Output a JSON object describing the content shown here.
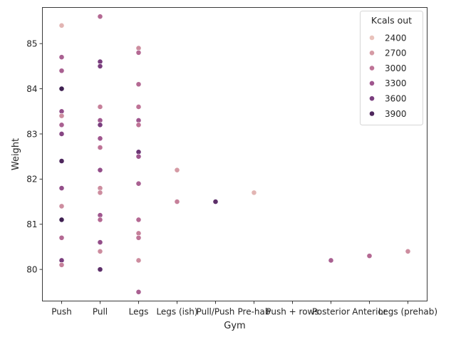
{
  "chart_data": {
    "type": "scatter",
    "xlabel": "Gym",
    "ylabel": "Weight",
    "categories": [
      "Push",
      "Pull",
      "Legs",
      "Legs (ish)",
      "Pull/Push",
      "Pre-hab",
      "Push + rows",
      "Posterior",
      "Anterior",
      "Legs (prehab)"
    ],
    "ylim": [
      79.3,
      85.8
    ],
    "yticks": [
      80,
      81,
      82,
      83,
      84,
      85
    ],
    "grid": false,
    "legend": {
      "title": "Kcals out",
      "placement": "top-right",
      "entries": [
        {
          "label": "2400",
          "kcal": 2400
        },
        {
          "label": "2700",
          "kcal": 2700
        },
        {
          "label": "3000",
          "kcal": 3000
        },
        {
          "label": "3300",
          "kcal": 3300
        },
        {
          "label": "3600",
          "kcal": 3600
        },
        {
          "label": "3900",
          "kcal": 3900
        }
      ]
    },
    "hue_range": [
      2300,
      4000
    ],
    "points": [
      {
        "x": "Push",
        "y": 85.4,
        "kcal": 2500
      },
      {
        "x": "Push",
        "y": 84.7,
        "kcal": 3200
      },
      {
        "x": "Push",
        "y": 84.4,
        "kcal": 3200
      },
      {
        "x": "Push",
        "y": 84.0,
        "kcal": 4000
      },
      {
        "x": "Push",
        "y": 83.5,
        "kcal": 3400
      },
      {
        "x": "Push",
        "y": 83.4,
        "kcal": 2800
      },
      {
        "x": "Push",
        "y": 83.2,
        "kcal": 3200
      },
      {
        "x": "Push",
        "y": 83.0,
        "kcal": 3500
      },
      {
        "x": "Push",
        "y": 82.4,
        "kcal": 3900
      },
      {
        "x": "Push",
        "y": 81.8,
        "kcal": 3400
      },
      {
        "x": "Push",
        "y": 81.4,
        "kcal": 2800
      },
      {
        "x": "Push",
        "y": 81.1,
        "kcal": 4000
      },
      {
        "x": "Push",
        "y": 80.7,
        "kcal": 3100
      },
      {
        "x": "Push",
        "y": 80.2,
        "kcal": 3600
      },
      {
        "x": "Push",
        "y": 80.1,
        "kcal": 2900
      },
      {
        "x": "Pull",
        "y": 85.6,
        "kcal": 3100
      },
      {
        "x": "Pull",
        "y": 84.6,
        "kcal": 3600
      },
      {
        "x": "Pull",
        "y": 84.5,
        "kcal": 3600
      },
      {
        "x": "Pull",
        "y": 83.6,
        "kcal": 2900
      },
      {
        "x": "Pull",
        "y": 83.3,
        "kcal": 3300
      },
      {
        "x": "Pull",
        "y": 83.2,
        "kcal": 3600
      },
      {
        "x": "Pull",
        "y": 82.9,
        "kcal": 3300
      },
      {
        "x": "Pull",
        "y": 82.7,
        "kcal": 3000
      },
      {
        "x": "Pull",
        "y": 82.2,
        "kcal": 3400
      },
      {
        "x": "Pull",
        "y": 81.8,
        "kcal": 2800
      },
      {
        "x": "Pull",
        "y": 81.7,
        "kcal": 2800
      },
      {
        "x": "Pull",
        "y": 81.2,
        "kcal": 3300
      },
      {
        "x": "Pull",
        "y": 81.1,
        "kcal": 3100
      },
      {
        "x": "Pull",
        "y": 80.6,
        "kcal": 3400
      },
      {
        "x": "Pull",
        "y": 80.4,
        "kcal": 2800
      },
      {
        "x": "Pull",
        "y": 80.0,
        "kcal": 3800
      },
      {
        "x": "Legs",
        "y": 84.9,
        "kcal": 2800
      },
      {
        "x": "Legs",
        "y": 84.8,
        "kcal": 3100
      },
      {
        "x": "Legs",
        "y": 84.1,
        "kcal": 3100
      },
      {
        "x": "Legs",
        "y": 83.6,
        "kcal": 3000
      },
      {
        "x": "Legs",
        "y": 83.3,
        "kcal": 3300
      },
      {
        "x": "Legs",
        "y": 83.2,
        "kcal": 3000
      },
      {
        "x": "Legs",
        "y": 82.6,
        "kcal": 3700
      },
      {
        "x": "Legs",
        "y": 82.5,
        "kcal": 3300
      },
      {
        "x": "Legs",
        "y": 81.9,
        "kcal": 3200
      },
      {
        "x": "Legs",
        "y": 81.1,
        "kcal": 3100
      },
      {
        "x": "Legs",
        "y": 80.8,
        "kcal": 2900
      },
      {
        "x": "Legs",
        "y": 80.7,
        "kcal": 3000
      },
      {
        "x": "Legs",
        "y": 80.2,
        "kcal": 2800
      },
      {
        "x": "Legs",
        "y": 79.5,
        "kcal": 3200
      },
      {
        "x": "Legs (ish)",
        "y": 82.2,
        "kcal": 2700
      },
      {
        "x": "Legs (ish)",
        "y": 81.5,
        "kcal": 2900
      },
      {
        "x": "Pull/Push",
        "y": 81.5,
        "kcal": 3800
      },
      {
        "x": "Pre-hab",
        "y": 81.7,
        "kcal": 2500
      },
      {
        "x": "Posterior",
        "y": 80.2,
        "kcal": 3200
      },
      {
        "x": "Anterior",
        "y": 80.3,
        "kcal": 3100
      },
      {
        "x": "Legs (prehab)",
        "y": 80.4,
        "kcal": 2800
      }
    ]
  },
  "colors": {
    "hue_stops": [
      "#efd0c3",
      "#d9a2a7",
      "#c07596",
      "#9d548e",
      "#72397a",
      "#3f2051"
    ],
    "axis": "#262626",
    "legend_border": "#d6d6d6"
  }
}
